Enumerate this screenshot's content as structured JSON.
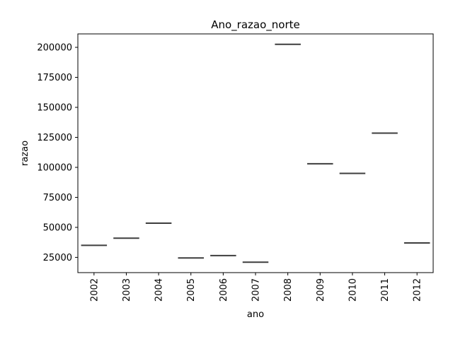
{
  "chart_data": {
    "type": "box",
    "title": "Ano_razao_norte",
    "xlabel": "ano",
    "ylabel": "razao",
    "categories": [
      "2002",
      "2003",
      "2004",
      "2005",
      "2006",
      "2007",
      "2008",
      "2009",
      "2010",
      "2011",
      "2012"
    ],
    "values": [
      35000,
      41000,
      53500,
      24500,
      26500,
      21000,
      202500,
      103000,
      95000,
      128500,
      37000
    ],
    "ylim": [
      12300,
      211200
    ],
    "yticks": [
      25000,
      50000,
      75000,
      100000,
      125000,
      150000,
      175000,
      200000
    ],
    "grid": false,
    "line_color": "#3d3d3d"
  }
}
